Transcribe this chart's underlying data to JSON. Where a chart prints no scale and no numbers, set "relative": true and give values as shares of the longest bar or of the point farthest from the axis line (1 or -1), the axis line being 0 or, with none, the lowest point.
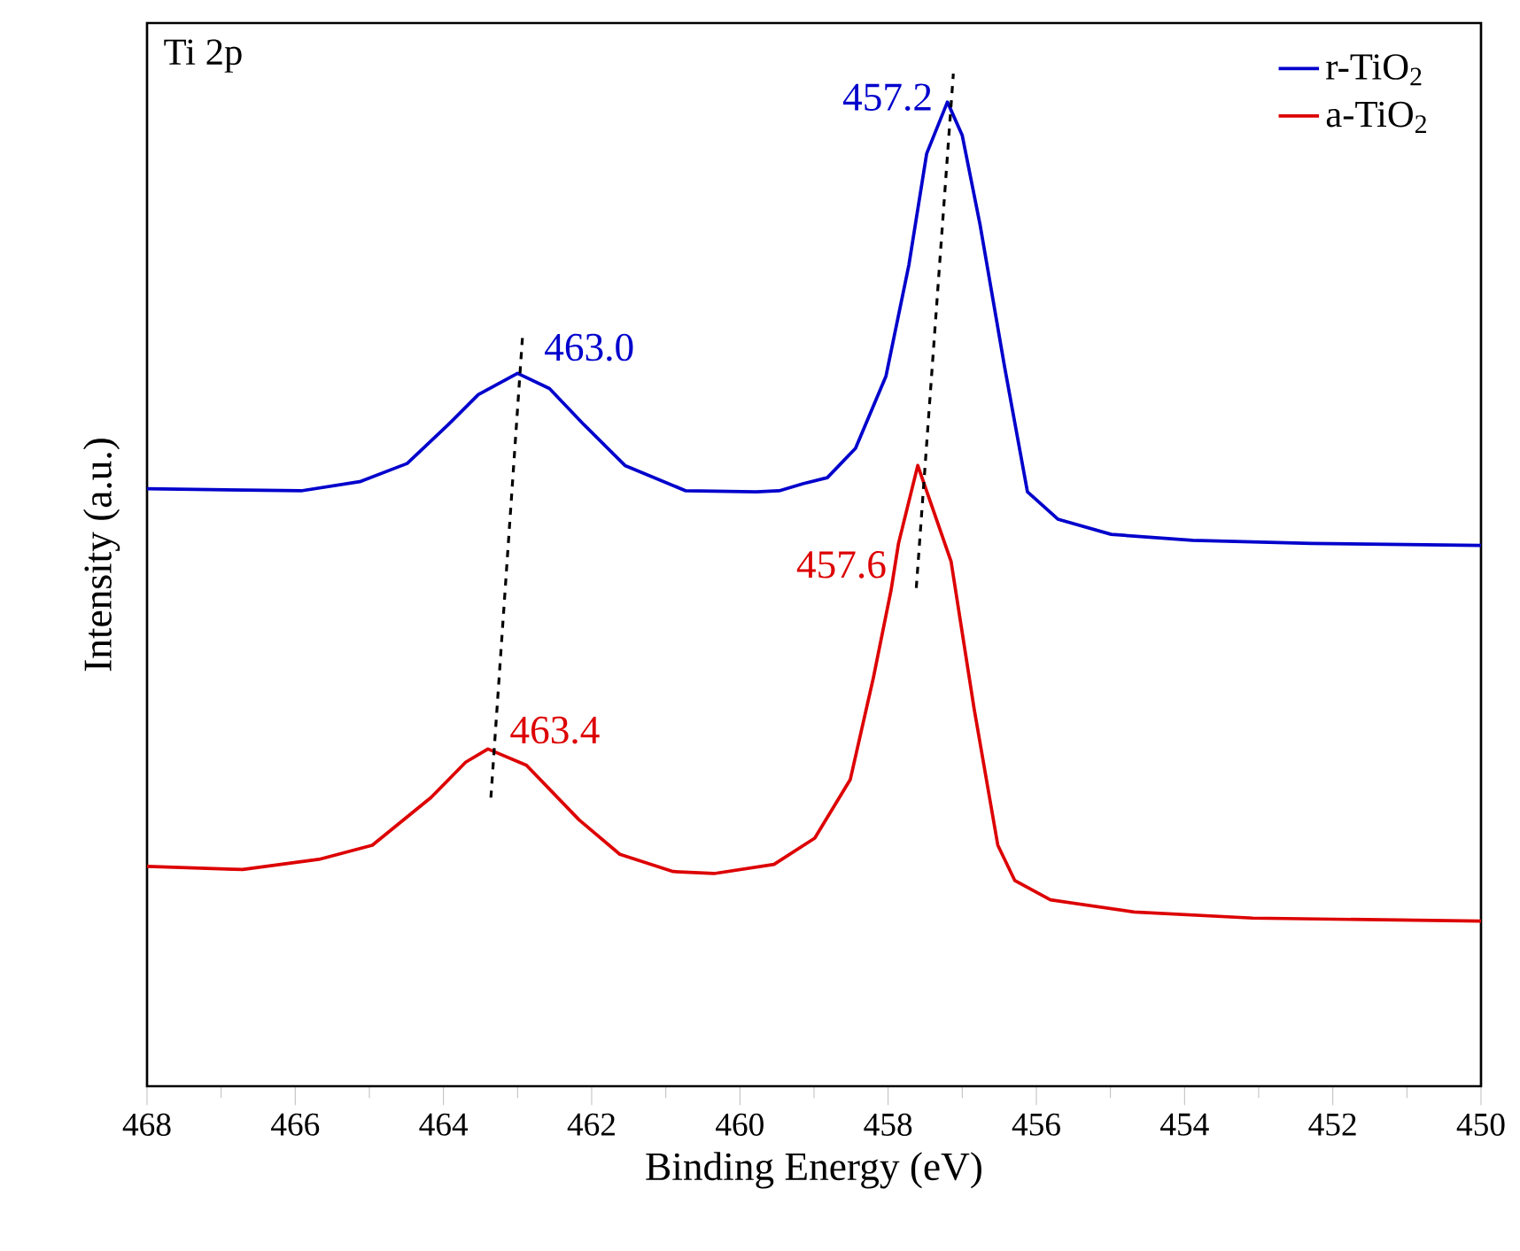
{
  "chart_data": {
    "type": "line",
    "relative": true,
    "xlabel": "Binding Energy (eV)",
    "ylabel": "Intensity (a.u.)",
    "xlim": [
      468,
      450
    ],
    "xticks": [
      468,
      466,
      464,
      462,
      460,
      458,
      456,
      454,
      452,
      450
    ],
    "legend": "top right",
    "marker": "none",
    "grid": false,
    "annotations": [
      "Ti 2p",
      {
        "text": "457.2",
        "x": 457.2,
        "y": 0.972
      },
      {
        "text": "463.0",
        "x": 463.0,
        "y": 0.704
      },
      {
        "text": "463.4",
        "x": 463.4,
        "y": 0.333
      },
      {
        "text": "457.6",
        "x": 457.6,
        "y": 0.613
      }
    ],
    "series": [
      {
        "name": "r-TiO$_{2}$",
        "color": "#0000cc",
        "line_style": "solid",
        "x": [
          468,
          465.92,
          465.13,
          464.49,
          463.94,
          463.53,
          463.0,
          462.57,
          462.1,
          461.55,
          460.73,
          459.78,
          459.47,
          459.15,
          458.82,
          458.44,
          458.03,
          457.72,
          457.48,
          457.2,
          457.0,
          456.76,
          456.43,
          456.12,
          455.71,
          454.99,
          453.89,
          452.29,
          450
        ],
        "values": [
          0.59,
          0.588,
          0.597,
          0.615,
          0.653,
          0.683,
          0.704,
          0.689,
          0.653,
          0.613,
          0.588,
          0.587,
          0.588,
          0.595,
          0.601,
          0.63,
          0.701,
          0.811,
          0.921,
          0.972,
          0.939,
          0.851,
          0.711,
          0.587,
          0.56,
          0.545,
          0.539,
          0.536,
          0.534
        ]
      },
      {
        "name": "a-TiO$_{2}$",
        "color": "#dd0000",
        "line_style": "solid",
        "x": [
          468,
          466.71,
          465.68,
          464.96,
          464.17,
          463.7,
          463.4,
          462.88,
          462.17,
          461.62,
          460.9,
          460.35,
          459.54,
          458.99,
          458.51,
          458.2,
          457.96,
          457.86,
          457.6,
          457.15,
          456.84,
          456.52,
          456.29,
          455.81,
          454.68,
          453.08,
          450
        ],
        "values": [
          0.217,
          0.214,
          0.224,
          0.238,
          0.285,
          0.32,
          0.333,
          0.317,
          0.263,
          0.229,
          0.212,
          0.21,
          0.219,
          0.245,
          0.303,
          0.403,
          0.49,
          0.536,
          0.613,
          0.518,
          0.373,
          0.238,
          0.203,
          0.184,
          0.172,
          0.166,
          0.163
        ]
      },
      {
        "color": "#000000",
        "line_style": "dashed",
        "x": [
          463.36,
          462.93
        ],
        "values": [
          0.285,
          0.744
        ]
      },
      {
        "color": "#000000",
        "line_style": "dashed",
        "x": [
          457.62,
          457.12
        ],
        "values": [
          0.492,
          1.0
        ]
      }
    ]
  }
}
